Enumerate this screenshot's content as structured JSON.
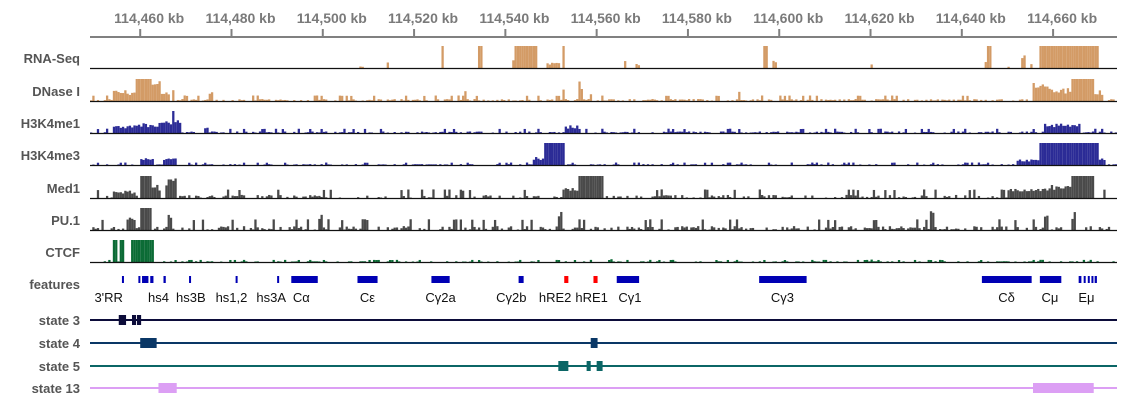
{
  "chart_data": {
    "type": "genome-browser",
    "x_unit": "kb",
    "xlim": [
      114449,
      114674
    ],
    "axis": {
      "ticks": [
        114460,
        114480,
        114500,
        114520,
        114540,
        114560,
        114580,
        114600,
        114620,
        114640,
        114660
      ],
      "tick_labels": [
        "114,460 kb",
        "114,480 kb",
        "114,500 kb",
        "114,520 kb",
        "114,540 kb",
        "114,560 kb",
        "114,580 kb",
        "114,600 kb",
        "114,620 kb",
        "114,640 kb",
        "114,660 kb"
      ]
    },
    "signal_tracks": [
      {
        "name": "RNA-Seq",
        "color": "#d39b66",
        "noise": 0.0,
        "density": 0.0,
        "peaks": [
          [
            114508.2,
            114508.6,
            0.08
          ],
          [
            114514.0,
            114514.4,
            0.3
          ],
          [
            114526.0,
            114526.4,
            1.0
          ],
          [
            114534.2,
            114534.6,
            1.0
          ],
          [
            114541.6,
            114542.4,
            0.35
          ],
          [
            114542.4,
            114546.9,
            1.0
          ],
          [
            114549.3,
            114552.0,
            0.25
          ],
          [
            114552.5,
            114552.9,
            1.0
          ],
          [
            114566.0,
            114566.4,
            0.45
          ],
          [
            114568.7,
            114569.1,
            0.2
          ],
          [
            114596.7,
            114597.1,
            1.0
          ],
          [
            114598.9,
            114599.3,
            0.4
          ],
          [
            114620.0,
            114620.4,
            0.25
          ],
          [
            114645.4,
            114645.8,
            0.3
          ],
          [
            114645.8,
            114646.2,
            1.0
          ],
          [
            114650.0,
            114650.4,
            0.06
          ],
          [
            114653.1,
            114653.8,
            0.75
          ],
          [
            114655.0,
            114655.4,
            0.2
          ],
          [
            114657.1,
            114669.8,
            1.0
          ]
        ]
      },
      {
        "name": "DNase I",
        "color": "#d39b66",
        "noise": 0.18,
        "density": 0.8,
        "peaks": [
          [
            114454.0,
            114459.0,
            0.5
          ],
          [
            114459.0,
            114462.5,
            1.0
          ],
          [
            114462.5,
            114464.5,
            0.9
          ],
          [
            114464.5,
            114466.5,
            0.4
          ],
          [
            114467.0,
            114467.5,
            0.75
          ],
          [
            114475.0,
            114476.0,
            0.5
          ],
          [
            114531.0,
            114531.5,
            0.45
          ],
          [
            114552.5,
            114553.0,
            0.75
          ],
          [
            114556.0,
            114557.0,
            0.9
          ],
          [
            114558.5,
            114559.0,
            0.5
          ],
          [
            114591.0,
            114591.5,
            0.5
          ],
          [
            114655.5,
            114660.0,
            0.9
          ],
          [
            114660.0,
            114664.0,
            0.6
          ],
          [
            114664.0,
            114669.0,
            1.0
          ],
          [
            114669.0,
            114671.0,
            0.5
          ]
        ]
      },
      {
        "name": "H3K4me1",
        "color": "#2b2b96",
        "noise": 0.14,
        "density": 0.75,
        "peaks": [
          [
            114454.4,
            114459.0,
            0.35
          ],
          [
            114459.0,
            114464.4,
            0.45
          ],
          [
            114464.4,
            114467.0,
            0.55
          ],
          [
            114467.0,
            114467.5,
            1.0
          ],
          [
            114467.5,
            114469.0,
            0.6
          ],
          [
            114474.0,
            114475.0,
            0.3
          ],
          [
            114553.3,
            114556.0,
            0.35
          ],
          [
            114658.0,
            114666.0,
            0.45
          ]
        ]
      },
      {
        "name": "H3K4me3",
        "color": "#2b2b96",
        "noise": 0.08,
        "density": 0.7,
        "peaks": [
          [
            114460.0,
            114463.0,
            0.35
          ],
          [
            114465.0,
            114468.0,
            0.3
          ],
          [
            114546.0,
            114548.5,
            0.4
          ],
          [
            114548.5,
            114553.0,
            1.0
          ],
          [
            114652.0,
            114657.0,
            0.25
          ],
          [
            114657.0,
            114670.0,
            1.0
          ],
          [
            114670.0,
            114671.1,
            0.35
          ]
        ]
      },
      {
        "name": "Med1",
        "color": "#4a4a4a",
        "noise": 0.28,
        "density": 0.55,
        "peaks": [
          [
            114454.4,
            114459.0,
            0.35
          ],
          [
            114460.0,
            114462.5,
            1.0
          ],
          [
            114462.5,
            114464.5,
            0.6
          ],
          [
            114465.5,
            114467.8,
            0.9
          ],
          [
            114530.0,
            114531.0,
            0.5
          ],
          [
            114553.3,
            114556.0,
            0.6
          ],
          [
            114556.0,
            114561.1,
            1.0
          ],
          [
            114650.0,
            114658.0,
            0.5
          ],
          [
            114658.0,
            114664.0,
            0.6
          ],
          [
            114664.0,
            114669.0,
            1.0
          ]
        ]
      },
      {
        "name": "PU.1",
        "color": "#4a4a4a",
        "noise": 0.35,
        "density": 0.6,
        "peaks": [
          [
            114457.8,
            114458.6,
            0.8
          ],
          [
            114460.4,
            114462.2,
            1.0
          ],
          [
            114466.0,
            114466.8,
            0.9
          ],
          [
            114499.4,
            114500.0,
            0.85
          ],
          [
            114551.6,
            114552.2,
            0.9
          ],
          [
            114633.0,
            114633.6,
            0.9
          ],
          [
            114658.0,
            114658.6,
            0.7
          ],
          [
            114664.0,
            114664.6,
            0.9
          ]
        ]
      },
      {
        "name": "CTCF",
        "color": "#0b6b35",
        "noise": 0.07,
        "density": 0.75,
        "peaks": [
          [
            114454.0,
            114454.6,
            1.0
          ],
          [
            114455.8,
            114456.4,
            1.0
          ],
          [
            114458.0,
            114463.0,
            1.0
          ],
          [
            114563.0,
            114563.5,
            0.2
          ],
          [
            114620.0,
            114620.5,
            0.18
          ]
        ]
      }
    ],
    "features": {
      "name": "features",
      "blocks": [
        {
          "start": 114456.0,
          "end": 114456.4,
          "color": "#0000b4"
        },
        {
          "start": 114459.6,
          "end": 114460.0,
          "color": "#0000b4"
        },
        {
          "start": 114460.4,
          "end": 114461.8,
          "color": "#0000b4"
        },
        {
          "start": 114462.2,
          "end": 114462.9,
          "color": "#0000b4"
        },
        {
          "start": 114465.1,
          "end": 114465.6,
          "color": "#0000b4"
        },
        {
          "start": 114470.7,
          "end": 114471.1,
          "color": "#0000b4"
        },
        {
          "start": 114480.9,
          "end": 114481.3,
          "color": "#0000b4"
        },
        {
          "start": 114490.0,
          "end": 114490.4,
          "color": "#0000b4"
        },
        {
          "start": 114493.1,
          "end": 114498.9,
          "color": "#0000b4"
        },
        {
          "start": 114507.6,
          "end": 114512.0,
          "color": "#0000b4"
        },
        {
          "start": 114523.8,
          "end": 114527.8,
          "color": "#0000b4"
        },
        {
          "start": 114542.9,
          "end": 114544.0,
          "color": "#0000b4"
        },
        {
          "start": 114552.9,
          "end": 114553.8,
          "color": "#ff0000"
        },
        {
          "start": 114559.3,
          "end": 114560.2,
          "color": "#ff0000"
        },
        {
          "start": 114564.4,
          "end": 114569.3,
          "color": "#0000b4"
        },
        {
          "start": 114595.6,
          "end": 114606.0,
          "color": "#0000b4"
        },
        {
          "start": 114644.4,
          "end": 114655.3,
          "color": "#0000b4"
        },
        {
          "start": 114657.1,
          "end": 114661.8,
          "color": "#0000b4"
        },
        {
          "start": 114665.6,
          "end": 114666.2,
          "color": "#0000b4"
        },
        {
          "start": 114666.7,
          "end": 114667.1,
          "color": "#0000b4"
        },
        {
          "start": 114667.6,
          "end": 114668.0,
          "color": "#0000b4"
        },
        {
          "start": 114668.4,
          "end": 114668.8,
          "color": "#0000b4"
        },
        {
          "start": 114669.1,
          "end": 114669.6,
          "color": "#0000b4"
        }
      ],
      "labels": [
        {
          "text": "3'RR",
          "pos": 114453.1
        },
        {
          "text": "hs4",
          "pos": 114464.0
        },
        {
          "text": "hs3B",
          "pos": 114471.1
        },
        {
          "text": "hs1,2",
          "pos": 114480.0
        },
        {
          "text": "hs3A",
          "pos": 114488.7
        },
        {
          "text": "Cα",
          "pos": 114495.3
        },
        {
          "text": "Cε",
          "pos": 114509.8
        },
        {
          "text": "Cγ2a",
          "pos": 114525.8
        },
        {
          "text": "Cγ2b",
          "pos": 114541.3
        },
        {
          "text": "hRE2",
          "pos": 114550.9
        },
        {
          "text": "hRE1",
          "pos": 114558.9
        },
        {
          "text": "Cγ1",
          "pos": 114567.3
        },
        {
          "text": "Cγ3",
          "pos": 114600.7
        },
        {
          "text": "Cδ",
          "pos": 114649.8
        },
        {
          "text": "Cμ",
          "pos": 114659.3
        },
        {
          "text": "Eμ",
          "pos": 114667.3
        }
      ]
    },
    "state_tracks": [
      {
        "name": "state 3",
        "color": "#0c0c3a",
        "blocks": [
          [
            114455.3,
            114456.9
          ],
          [
            114458.2,
            114459.1
          ],
          [
            114459.3,
            114460.2
          ]
        ]
      },
      {
        "name": "state 4",
        "color": "#0a3766",
        "blocks": [
          [
            114460.0,
            114463.6
          ],
          [
            114558.7,
            114560.2
          ]
        ]
      },
      {
        "name": "state 5",
        "color": "#0b6666",
        "blocks": [
          [
            114551.6,
            114553.8
          ],
          [
            114557.8,
            114558.7
          ],
          [
            114560.0,
            114561.3
          ]
        ]
      },
      {
        "name": "state 13",
        "color": "#dc9ff4",
        "blocks": [
          [
            114464.0,
            114468.0
          ],
          [
            114655.6,
            114668.9
          ]
        ]
      }
    ]
  }
}
